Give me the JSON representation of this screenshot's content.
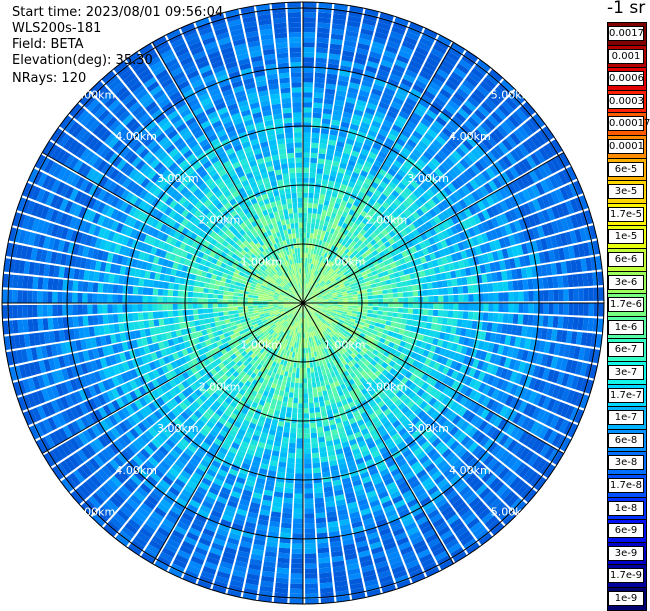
{
  "info": {
    "start_time": "Start time: 2023/08/01 09:56:04",
    "device": "WLS200s-181",
    "field": "Field: BETA",
    "elevation": "Elevation(deg): 35.30",
    "nrays": "NRays: 120"
  },
  "range_labels": [
    "1.00km",
    "2.00km",
    "3.00km",
    "4.00km",
    "5.00km"
  ],
  "legend": {
    "title": "-1 sr",
    "labels": [
      "0.0017",
      "0.001",
      "0.0006",
      "0.0003",
      "0.00017",
      "0.0001",
      "6e-5",
      "3e-5",
      "1.7e-5",
      "1e-5",
      "6e-6",
      "3e-6",
      "1.7e-6",
      "1e-6",
      "6e-7",
      "3e-7",
      "1.7e-7",
      "1e-7",
      "6e-8",
      "3e-8",
      "1.7e-8",
      "1e-8",
      "6e-9",
      "3e-9",
      "1.7e-9",
      "1e-9"
    ],
    "colors": [
      "#800000",
      "#b00000",
      "#e00000",
      "#ff2000",
      "#ff5a00",
      "#ff8c00",
      "#ffb000",
      "#ffd500",
      "#fff200",
      "#e8ff10",
      "#c0ff3a",
      "#9bff5c",
      "#78ff80",
      "#56ffa2",
      "#34ffc4",
      "#14f6e8",
      "#00d8ff",
      "#00b4ff",
      "#0090ff",
      "#0070ff",
      "#0050ff",
      "#0030ff",
      "#0010f0",
      "#0000c8",
      "#00009c",
      "#000070"
    ]
  }
}
